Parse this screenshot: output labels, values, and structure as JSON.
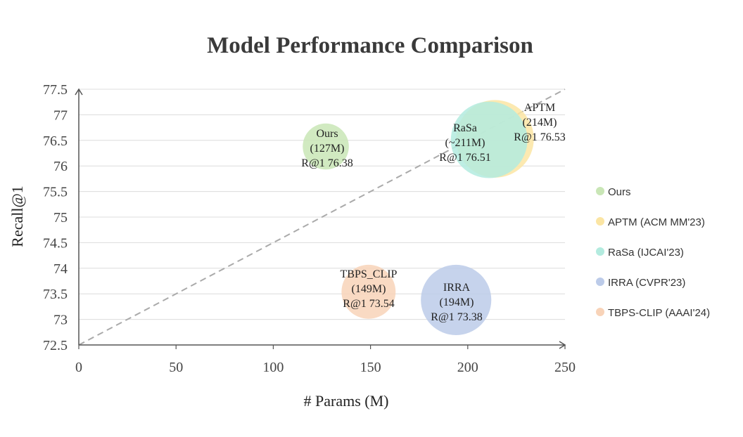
{
  "chart_data": {
    "type": "scatter",
    "title": "Model Performance Comparison",
    "xlabel": "# Params (M)",
    "ylabel": "Recall@1",
    "xlim": [
      0,
      250
    ],
    "ylim": [
      72.5,
      77.5
    ],
    "x_ticks": [
      "0",
      "50",
      "100",
      "150",
      "200",
      "250"
    ],
    "y_ticks": [
      "72.5",
      "73",
      "73.5",
      "74",
      "74.5",
      "75",
      "75.5",
      "76",
      "76.5",
      "77",
      "77.5"
    ],
    "grid": "horizontal",
    "legend_position": "right",
    "reference_line": {
      "from": [
        0,
        72.5
      ],
      "to": [
        250,
        77.5
      ],
      "style": "dashed"
    },
    "series": [
      {
        "name": "Ours",
        "x": 127,
        "y": 76.38,
        "color": "#c9e6b6",
        "label_lines": [
          "Ours",
          "(127M)",
          "R@1 76.38"
        ]
      },
      {
        "name": "APTM (ACM MM'23)",
        "x": 214,
        "y": 76.53,
        "color": "#fbe5a3",
        "label_lines": [
          "APTM",
          "(214M)",
          "R@1 76.53"
        ]
      },
      {
        "name": "RaSa (IJCAI'23)",
        "x": 211,
        "y": 76.51,
        "color": "#b3ebdf",
        "label_lines": [
          "RaSa",
          "(~211M)",
          "R@1 76.51"
        ]
      },
      {
        "name": "IRRA (CVPR'23)",
        "x": 194,
        "y": 73.38,
        "color": "#bccbe9",
        "label_lines": [
          "IRRA",
          "(194M)",
          "R@1 73.38"
        ]
      },
      {
        "name": "TBPS-CLIP (AAAI'24)",
        "x": 149,
        "y": 73.54,
        "color": "#f8d3b8",
        "label_lines": [
          "TBPS_CLIP",
          "(149M)",
          "R@1 73.54"
        ]
      }
    ]
  }
}
